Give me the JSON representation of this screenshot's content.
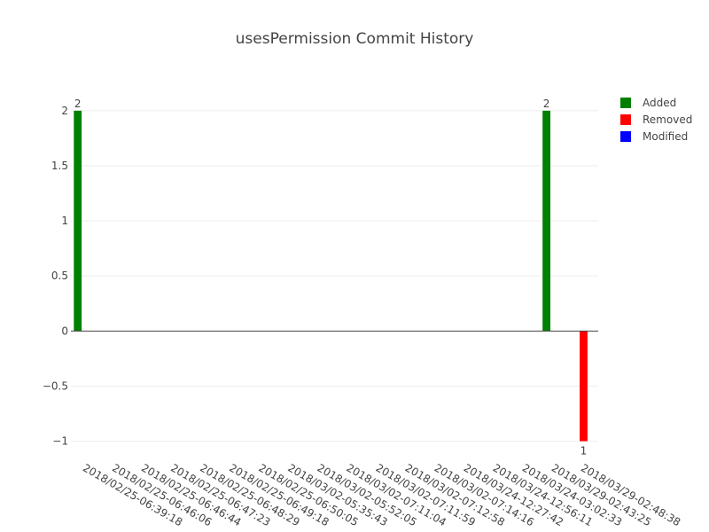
{
  "chart_data": {
    "type": "bar",
    "title": "usesPermission Commit History",
    "categories": [
      "2018/02/25-06:39:18",
      "2018/02/25-06:46:06",
      "2018/02/25-06:46:44",
      "2018/02/25-06:47:23",
      "2018/02/25-06:48:29",
      "2018/02/25-06:49:18",
      "2018/02/25-06:50:05",
      "2018/03/02-05:35:43",
      "2018/03/02-05:52:05",
      "2018/03/02-07:11:04",
      "2018/03/02-07:11:59",
      "2018/03/02-07:12:58",
      "2018/03/02-07:14:16",
      "2018/03/24-12:27:42",
      "2018/03/24-12:56:11",
      "2018/03/24-03:02:33",
      "2018/03/29-02:43:25",
      "2018/03/29-02:48:38"
    ],
    "series": [
      {
        "name": "Added",
        "color": "#008000",
        "values": [
          2,
          0,
          0,
          0,
          0,
          0,
          0,
          0,
          0,
          0,
          0,
          0,
          0,
          0,
          0,
          0,
          2,
          0
        ]
      },
      {
        "name": "Removed",
        "color": "#ff0000",
        "values": [
          0,
          0,
          0,
          0,
          0,
          0,
          0,
          0,
          0,
          0,
          0,
          0,
          0,
          0,
          0,
          0,
          0,
          -1
        ]
      },
      {
        "name": "Modified",
        "color": "#0000ff",
        "values": [
          0,
          0,
          0,
          0,
          0,
          0,
          0,
          0,
          0,
          0,
          0,
          0,
          0,
          0,
          0,
          0,
          0,
          0
        ]
      }
    ],
    "data_labels": [
      {
        "category": "2018/02/25-06:39:18",
        "series": "Added",
        "text": "2"
      },
      {
        "category": "2018/03/29-02:43:25",
        "series": "Added",
        "text": "2"
      },
      {
        "category": "2018/03/29-02:48:38",
        "series": "Removed",
        "text": "1"
      }
    ],
    "ylim": [
      -1.1,
      2.2
    ],
    "yticks": [
      -1,
      -0.5,
      0,
      0.5,
      1,
      1.5,
      2
    ],
    "ytick_labels": [
      "−1",
      "−0.5",
      "0",
      "0.5",
      "1",
      "1.5",
      "2"
    ],
    "grid": true,
    "legend_position": "top-right"
  }
}
